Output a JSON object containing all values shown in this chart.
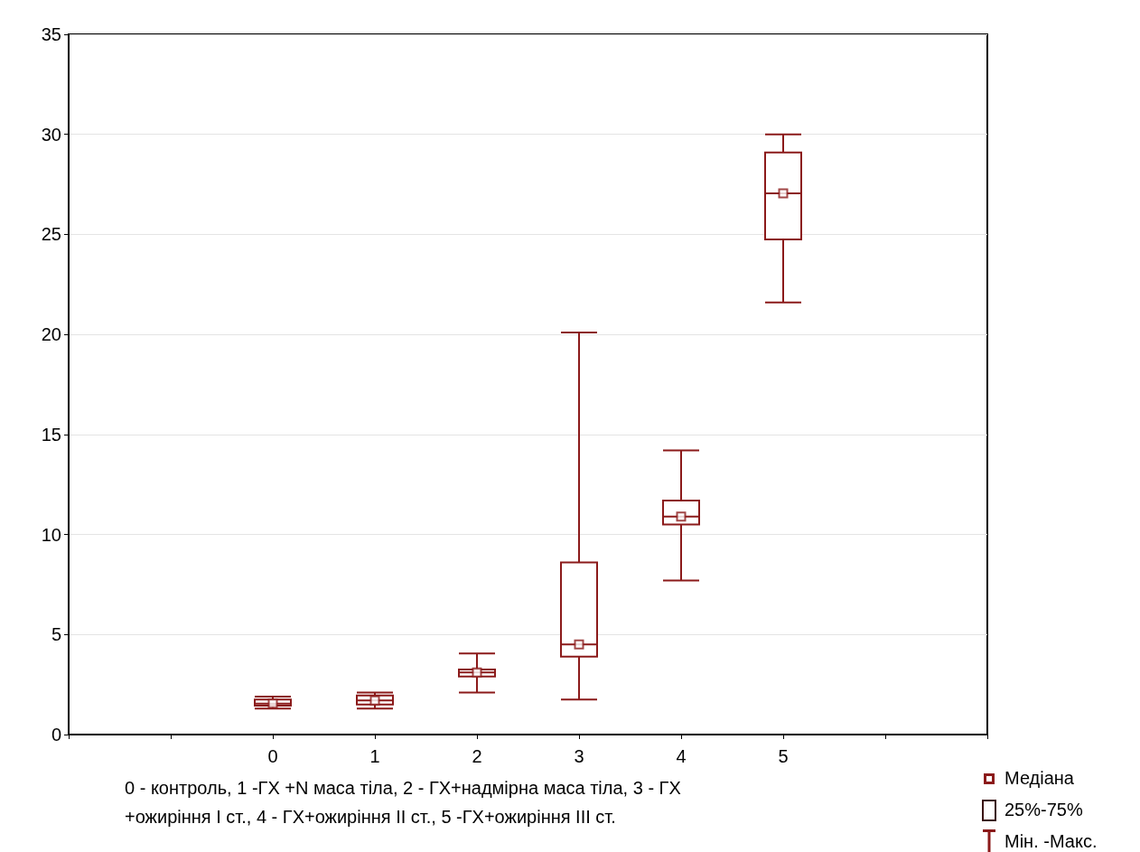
{
  "chart_data": {
    "type": "box",
    "xlabel": "0 - контроль, 1 -ГХ +N маса тіла, 2 - ГХ+надмірна маса тіла, 3 - ГХ\n+ожиріння I ст., 4 - ГХ+ожиріння II ст., 5 -ГХ+ожиріння III ст.",
    "categories": [
      null,
      null,
      "0",
      "1",
      "2",
      "3",
      "4",
      "5",
      null,
      null
    ],
    "series": [
      {
        "color": "#8b1a1a",
        "boxes": [
          null,
          null,
          {
            "low": 1.3,
            "q1": 1.45,
            "median": 1.55,
            "q3": 1.75,
            "high": 1.9
          },
          {
            "low": 1.3,
            "q1": 1.5,
            "median": 1.7,
            "q3": 1.95,
            "high": 2.1
          },
          {
            "low": 2.1,
            "q1": 2.9,
            "median": 3.1,
            "q3": 3.25,
            "high": 4.05
          },
          {
            "low": 1.75,
            "q1": 3.9,
            "median": 4.5,
            "q3": 8.6,
            "high": 20.1
          },
          {
            "low": 7.7,
            "q1": 10.5,
            "median": 10.9,
            "q3": 11.7,
            "high": 14.2
          },
          {
            "low": 21.6,
            "q1": 24.75,
            "median": 27.05,
            "q3": 29.1,
            "high": 30
          },
          null,
          null
        ]
      },
      {
        "type": "scatter",
        "color": "#8b1a1a",
        "x": [
          "0",
          "1",
          "2",
          "3",
          "4",
          "5"
        ],
        "values": [
          1.55,
          1.7,
          3.1,
          4.5,
          10.9,
          27.05
        ]
      }
    ],
    "ylim": [
      0,
      35
    ],
    "yticks": [
      0,
      5,
      10,
      15,
      20,
      25,
      30,
      35
    ],
    "grid": "y",
    "marker": "square",
    "annotations": [
      "Медіана",
      "25%-75%",
      "Мін. -Макс."
    ]
  }
}
